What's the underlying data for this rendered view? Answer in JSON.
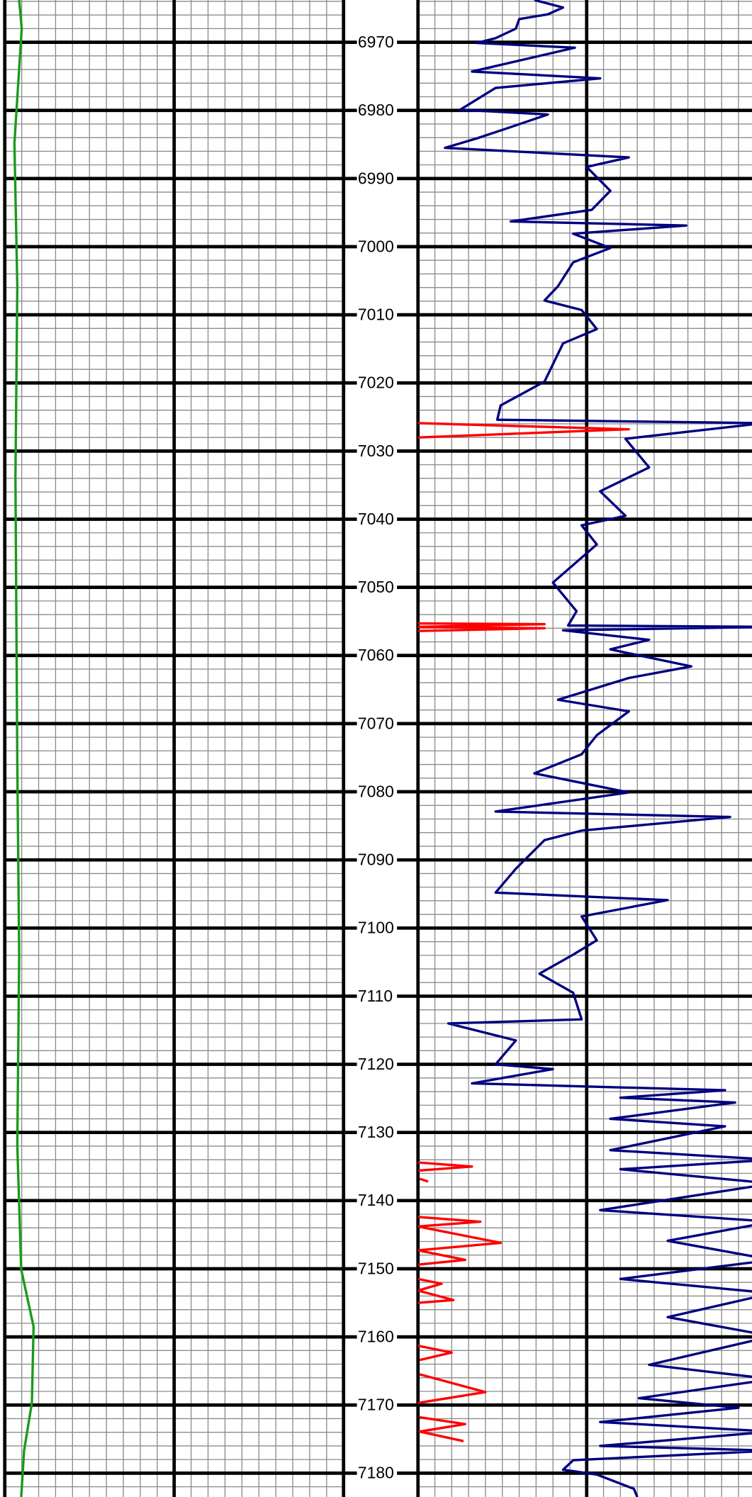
{
  "chart_data": {
    "type": "line",
    "ylim": [
      6963.8,
      7183.5
    ],
    "yticks": [
      6970,
      6980,
      6990,
      7000,
      7010,
      7020,
      7030,
      7040,
      7050,
      7060,
      7070,
      7080,
      7090,
      7100,
      7110,
      7120,
      7130,
      7140,
      7150,
      7160,
      7170,
      7180
    ],
    "yticks_minor": [
      6964,
      6966,
      6968,
      6970,
      6972,
      6974,
      6976,
      6978,
      6980,
      6982,
      6984,
      6986,
      6988,
      6990,
      6992,
      6994,
      6996,
      6998,
      7000,
      7002,
      7004,
      7006,
      7008,
      7010,
      7012,
      7014,
      7016,
      7018,
      7020,
      7022,
      7024,
      7026,
      7028,
      7030,
      7032,
      7034,
      7036,
      7038,
      7040,
      7042,
      7044,
      7046,
      7048,
      7050,
      7052,
      7054,
      7056,
      7058,
      7060,
      7062,
      7064,
      7066,
      7068,
      7070,
      7072,
      7074,
      7076,
      7078,
      7080,
      7082,
      7084,
      7086,
      7088,
      7090,
      7092,
      7094,
      7096,
      7098,
      7100,
      7102,
      7104,
      7106,
      7108,
      7110,
      7112,
      7114,
      7116,
      7118,
      7120,
      7122,
      7124,
      7126,
      7128,
      7130,
      7132,
      7134,
      7136,
      7138,
      7140,
      7142,
      7144,
      7146,
      7148,
      7150,
      7152,
      7154,
      7156,
      7158,
      7160,
      7162,
      7164,
      7166,
      7168,
      7170,
      7172,
      7174,
      7176,
      7178,
      7180,
      7182
    ],
    "grid": true,
    "tracks": [
      {
        "xlim": [
          0,
          20
        ],
        "xticks": [
          0,
          10,
          20
        ],
        "xticks_minor": [
          1,
          2,
          3,
          4,
          5,
          6,
          7,
          8,
          9,
          11,
          12,
          13,
          14,
          15,
          16,
          17,
          18,
          19
        ]
      },
      {
        "xlim": [
          0,
          19.8
        ],
        "xticks": [
          0,
          10
        ],
        "xticks_minor": [
          1,
          2,
          3,
          4,
          5,
          6,
          7,
          8,
          9,
          11,
          12,
          13,
          14,
          15,
          16,
          17,
          18,
          19
        ]
      }
    ],
    "series": [
      {
        "color": "#1a9a1a",
        "track": 0,
        "depth": [
          6963.8,
          6968.0,
          6984.8,
          7005.8,
          7033.8,
          7075.9,
          7103.9,
          7131.9,
          7150.1,
          7158.5,
          7169.7,
          7176.7,
          7183.5
        ],
        "values": [
          0.85,
          1.0,
          0.57,
          0.74,
          0.63,
          0.74,
          0.85,
          0.74,
          0.97,
          1.7,
          1.6,
          1.14,
          0.97
        ]
      },
      {
        "color": "#000080",
        "track": 1,
        "depth": [
          6963.8,
          6964.9,
          6965.9,
          6966.6,
          6968.0,
          6969.4,
          6970.1,
          6970.8,
          6974.3,
          6975.3,
          6976.7,
          6979.9,
          6980.6,
          6982.7,
          6984.1,
          6985.5,
          6986.9,
          6988.3,
          6991.8,
          6994.6,
          6996.3,
          6996.9,
          6998.1,
          7000.2,
          7002.3,
          7005.8,
          7007.9,
          7009.3,
          7012.1,
          7014.2,
          7019.8,
          7023.3,
          7025.4,
          7025.9,
          7027.5,
          7028.2,
          7032.4,
          7035.9,
          7039.5,
          7040.9,
          7043.7,
          7049.3,
          7053.5,
          7055.6,
          7055.8,
          7056.3,
          7057.7,
          7059.1,
          7061.6,
          7063.3,
          7066.5,
          7068.2,
          7071.7,
          7074.5,
          7077.3,
          7079.0,
          7080.1,
          7082.9,
          7083.7,
          7085.7,
          7087.1,
          7091.3,
          7094.8,
          7095.9,
          7098.3,
          7101.8,
          7103.9,
          7106.7,
          7109.5,
          7113.4,
          7114.0,
          7116.5,
          7120.0,
          7120.7,
          7122.8,
          7123.8,
          7124.9,
          7125.6,
          7128.0,
          7129.1,
          7132.6,
          7134.0,
          7135.4,
          7137.5,
          7141.4,
          7143.1,
          7145.9,
          7148.7,
          7151.5,
          7153.6,
          7157.1,
          7159.9,
          7164.1,
          7166.2,
          7169.0,
          7170.4,
          7172.5,
          7173.9,
          7176.0,
          7176.7,
          7178.1,
          7179.5,
          7180.2,
          7182.3,
          7183.5
        ],
        "values": [
          6.9,
          8.6,
          7.7,
          6.0,
          5.8,
          4.6,
          3.5,
          9.3,
          3.2,
          10.8,
          4.6,
          2.5,
          7.7,
          5.2,
          3.5,
          1.6,
          12.5,
          10.0,
          11.4,
          10.3,
          5.5,
          15.9,
          9.2,
          11.4,
          9.2,
          8.3,
          7.5,
          9.7,
          10.6,
          8.6,
          7.5,
          4.9,
          4.7,
          20.5,
          14.8,
          12.3,
          13.7,
          10.8,
          12.3,
          9.7,
          10.6,
          8.0,
          9.4,
          8.9,
          21,
          8.6,
          13.7,
          11.4,
          16.2,
          12.5,
          8.3,
          12.5,
          10.6,
          9.7,
          6.9,
          10.3,
          12.5,
          4.6,
          18.5,
          9.7,
          7.5,
          5.8,
          4.6,
          14.8,
          9.7,
          10.6,
          9.2,
          7.2,
          9.2,
          9.7,
          1.8,
          5.8,
          4.6,
          8.0,
          3.2,
          18.2,
          12.0,
          18.8,
          11.4,
          18.2,
          11.4,
          21,
          12.0,
          21,
          10.8,
          21,
          14.8,
          21,
          12.0,
          21,
          14.8,
          21,
          13.7,
          21,
          13.1,
          19.0,
          10.8,
          21,
          10.8,
          21,
          9.2,
          8.6,
          10.6,
          12.8,
          13.0
        ]
      },
      {
        "color": "#ff0000",
        "track": 1,
        "depth": [
          7025.9,
          7026.8,
          7028.0,
          null,
          7055.3,
          7055.4,
          7055.8,
          7056.0,
          7056.4,
          null,
          7134.4,
          7135.0,
          7135.6,
          null,
          7136.8,
          7137.2,
          null,
          7142.4,
          7143.1,
          7143.8,
          7146.2,
          7147.3,
          7148.7,
          7149.4,
          null,
          7151.5,
          7152.2,
          7153.2,
          7154.6,
          7155.0,
          null,
          7161.3,
          7162.3,
          7163.4,
          null,
          7165.5,
          7168.1,
          7169.7,
          null,
          7171.8,
          7172.8,
          7173.9,
          7175.3
        ],
        "values": [
          0,
          12.5,
          0,
          null,
          0,
          7.5,
          0,
          7.5,
          0,
          null,
          0,
          3.2,
          0,
          null,
          0.1,
          0.6,
          null,
          0,
          3.7,
          0,
          4.9,
          0,
          2.8,
          0,
          null,
          0,
          1.4,
          0,
          2.1,
          0,
          null,
          0,
          2.0,
          0.1,
          null,
          0.1,
          4.0,
          0,
          null,
          0.1,
          2.8,
          0.1,
          2.7
        ]
      }
    ]
  }
}
